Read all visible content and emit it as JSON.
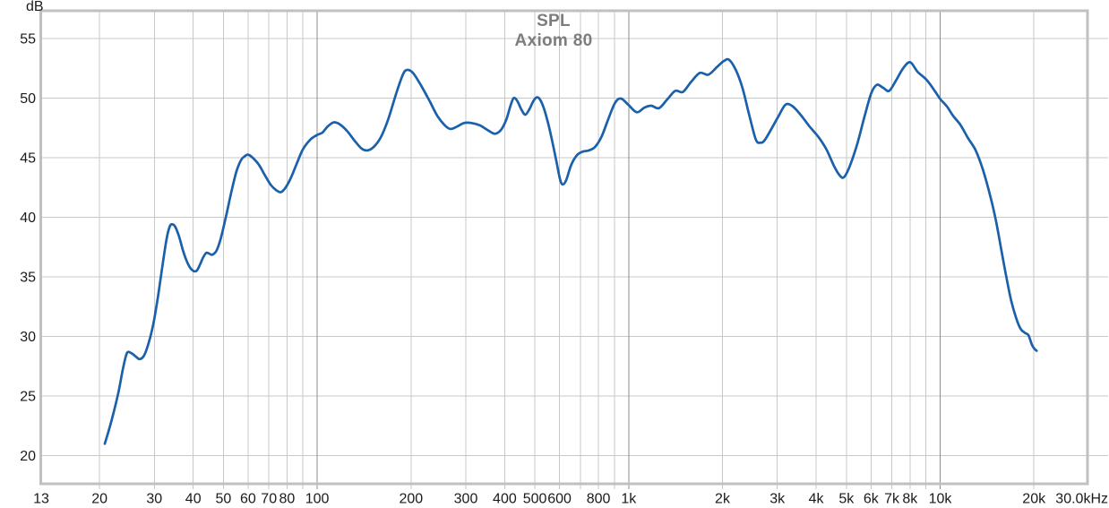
{
  "chart_data": {
    "type": "line",
    "title": "SPL",
    "subtitle": "Axiom 80",
    "ylabel": "dB",
    "legend": "none",
    "grid": "on",
    "x_axis": {
      "scale": "log",
      "min_hz": 13,
      "max_hz": 30000,
      "tick_labels": [
        {
          "hz": 13,
          "label": "13"
        },
        {
          "hz": 20,
          "label": "20"
        },
        {
          "hz": 30,
          "label": "30"
        },
        {
          "hz": 40,
          "label": "40"
        },
        {
          "hz": 50,
          "label": "50"
        },
        {
          "hz": 60,
          "label": "60"
        },
        {
          "hz": 70,
          "label": "70"
        },
        {
          "hz": 80,
          "label": "80"
        },
        {
          "hz": 100,
          "label": "100"
        },
        {
          "hz": 200,
          "label": "200"
        },
        {
          "hz": 300,
          "label": "300"
        },
        {
          "hz": 400,
          "label": "400"
        },
        {
          "hz": 500,
          "label": "500"
        },
        {
          "hz": 600,
          "label": "600"
        },
        {
          "hz": 800,
          "label": "800"
        },
        {
          "hz": 1000,
          "label": "1k"
        },
        {
          "hz": 2000,
          "label": "2k"
        },
        {
          "hz": 3000,
          "label": "3k"
        },
        {
          "hz": 4000,
          "label": "4k"
        },
        {
          "hz": 5000,
          "label": "5k"
        },
        {
          "hz": 6000,
          "label": "6k"
        },
        {
          "hz": 7000,
          "label": "7k"
        },
        {
          "hz": 8000,
          "label": "8k"
        },
        {
          "hz": 10000,
          "label": "10k"
        },
        {
          "hz": 20000,
          "label": "20k"
        },
        {
          "hz": 30000,
          "label": "30.0kHz"
        }
      ],
      "minor_gridlines_hz": [
        20,
        30,
        40,
        50,
        60,
        70,
        80,
        90,
        200,
        300,
        400,
        500,
        600,
        700,
        800,
        900,
        2000,
        3000,
        4000,
        5000,
        6000,
        7000,
        8000,
        9000,
        20000
      ],
      "major_gridlines_hz": [
        100,
        1000,
        10000
      ]
    },
    "y_axis": {
      "unit": "dB",
      "ticks_db": [
        55,
        50,
        45,
        40,
        35,
        30,
        25,
        20
      ],
      "range_db": [
        17.75,
        57.2
      ]
    },
    "series": [
      {
        "name": "Axiom 80",
        "color": "#1a60aa",
        "points_hz_db": [
          [
            20.8,
            21.0
          ],
          [
            21.3,
            21.9
          ],
          [
            22,
            23.2
          ],
          [
            23,
            25.3
          ],
          [
            23.8,
            27.3
          ],
          [
            24.5,
            28.6
          ],
          [
            25.3,
            28.6
          ],
          [
            26.2,
            28.3
          ],
          [
            26.9,
            28.1
          ],
          [
            27.8,
            28.4
          ],
          [
            28.8,
            29.5
          ],
          [
            29.8,
            31.1
          ],
          [
            30.8,
            33.3
          ],
          [
            31.8,
            35.8
          ],
          [
            32.8,
            38.1
          ],
          [
            33.6,
            39.2
          ],
          [
            34.2,
            39.4
          ],
          [
            35,
            39.2
          ],
          [
            36,
            38.4
          ],
          [
            37,
            37.3
          ],
          [
            38,
            36.4
          ],
          [
            39,
            35.8
          ],
          [
            40,
            35.5
          ],
          [
            41,
            35.5
          ],
          [
            42,
            36.0
          ],
          [
            43,
            36.6
          ],
          [
            44,
            37.0
          ],
          [
            45,
            36.95
          ],
          [
            46,
            36.85
          ],
          [
            47.5,
            37.2
          ],
          [
            49,
            38.2
          ],
          [
            51,
            40.1
          ],
          [
            53,
            42.1
          ],
          [
            55,
            43.8
          ],
          [
            57,
            44.8
          ],
          [
            58.5,
            45.1
          ],
          [
            60,
            45.25
          ],
          [
            62,
            45.0
          ],
          [
            65,
            44.4
          ],
          [
            68,
            43.5
          ],
          [
            71,
            42.7
          ],
          [
            74,
            42.25
          ],
          [
            76.5,
            42.1
          ],
          [
            79,
            42.45
          ],
          [
            82,
            43.2
          ],
          [
            86,
            44.5
          ],
          [
            90,
            45.7
          ],
          [
            95,
            46.5
          ],
          [
            100,
            46.9
          ],
          [
            104,
            47.1
          ],
          [
            108,
            47.6
          ],
          [
            113,
            47.95
          ],
          [
            118,
            47.8
          ],
          [
            125,
            47.2
          ],
          [
            132,
            46.4
          ],
          [
            139,
            45.75
          ],
          [
            145,
            45.6
          ],
          [
            152,
            45.9
          ],
          [
            160,
            46.7
          ],
          [
            169,
            48.2
          ],
          [
            179,
            50.3
          ],
          [
            188,
            51.9
          ],
          [
            194,
            52.35
          ],
          [
            203,
            52.1
          ],
          [
            216,
            51.0
          ],
          [
            230,
            49.7
          ],
          [
            243,
            48.5
          ],
          [
            257,
            47.7
          ],
          [
            268,
            47.4
          ],
          [
            281,
            47.6
          ],
          [
            296,
            47.9
          ],
          [
            313,
            47.9
          ],
          [
            333,
            47.7
          ],
          [
            353,
            47.3
          ],
          [
            372,
            47.0
          ],
          [
            390,
            47.35
          ],
          [
            405,
            48.2
          ],
          [
            418,
            49.4
          ],
          [
            428,
            50.0
          ],
          [
            440,
            49.7
          ],
          [
            453,
            49.0
          ],
          [
            466,
            48.6
          ],
          [
            481,
            49.1
          ],
          [
            496,
            49.8
          ],
          [
            511,
            50.05
          ],
          [
            528,
            49.5
          ],
          [
            546,
            48.3
          ],
          [
            566,
            46.6
          ],
          [
            586,
            44.7
          ],
          [
            602,
            43.2
          ],
          [
            614,
            42.75
          ],
          [
            630,
            43.1
          ],
          [
            654,
            44.4
          ],
          [
            682,
            45.2
          ],
          [
            712,
            45.5
          ],
          [
            745,
            45.6
          ],
          [
            780,
            45.9
          ],
          [
            820,
            46.8
          ],
          [
            862,
            48.3
          ],
          [
            905,
            49.6
          ],
          [
            945,
            49.95
          ],
          [
            1000,
            49.4
          ],
          [
            1062,
            48.8
          ],
          [
            1125,
            49.2
          ],
          [
            1182,
            49.35
          ],
          [
            1252,
            49.15
          ],
          [
            1332,
            49.9
          ],
          [
            1412,
            50.6
          ],
          [
            1492,
            50.5
          ],
          [
            1582,
            51.3
          ],
          [
            1692,
            52.1
          ],
          [
            1802,
            51.95
          ],
          [
            1922,
            52.6
          ],
          [
            2022,
            53.1
          ],
          [
            2102,
            53.2
          ],
          [
            2212,
            52.3
          ],
          [
            2322,
            50.8
          ],
          [
            2442,
            48.5
          ],
          [
            2562,
            46.5
          ],
          [
            2652,
            46.25
          ],
          [
            2732,
            46.45
          ],
          [
            2872,
            47.4
          ],
          [
            3032,
            48.5
          ],
          [
            3192,
            49.45
          ],
          [
            3362,
            49.3
          ],
          [
            3562,
            48.6
          ],
          [
            3812,
            47.6
          ],
          [
            4062,
            46.75
          ],
          [
            4312,
            45.7
          ],
          [
            4562,
            44.3
          ],
          [
            4762,
            43.5
          ],
          [
            4912,
            43.35
          ],
          [
            5112,
            44.2
          ],
          [
            5412,
            46.1
          ],
          [
            5712,
            48.4
          ],
          [
            6012,
            50.4
          ],
          [
            6262,
            51.1
          ],
          [
            6562,
            50.85
          ],
          [
            6862,
            50.6
          ],
          [
            7212,
            51.45
          ],
          [
            7612,
            52.5
          ],
          [
            8012,
            53.0
          ],
          [
            8462,
            52.2
          ],
          [
            9062,
            51.5
          ],
          [
            9662,
            50.5
          ],
          [
            10012,
            49.9
          ],
          [
            10512,
            49.3
          ],
          [
            11012,
            48.5
          ],
          [
            11612,
            47.75
          ],
          [
            12312,
            46.6
          ],
          [
            13012,
            45.6
          ],
          [
            13712,
            44.0
          ],
          [
            14512,
            41.7
          ],
          [
            15112,
            39.7
          ],
          [
            15712,
            37.3
          ],
          [
            16312,
            35.0
          ],
          [
            16912,
            33.0
          ],
          [
            17512,
            31.6
          ],
          [
            18112,
            30.65
          ],
          [
            18712,
            30.3
          ],
          [
            19212,
            30.1
          ],
          [
            19712,
            29.3
          ],
          [
            20112,
            28.95
          ],
          [
            20412,
            28.8
          ]
        ]
      }
    ],
    "colors": {
      "background": "#ffffff",
      "grid_minor": "#c8c8c8",
      "grid_major": "#8c8c8c",
      "border": "#c0c0c0",
      "tick_text": "#1a1a1a",
      "title_text": "#7d7d7d",
      "trace": "#1a60aa"
    }
  }
}
